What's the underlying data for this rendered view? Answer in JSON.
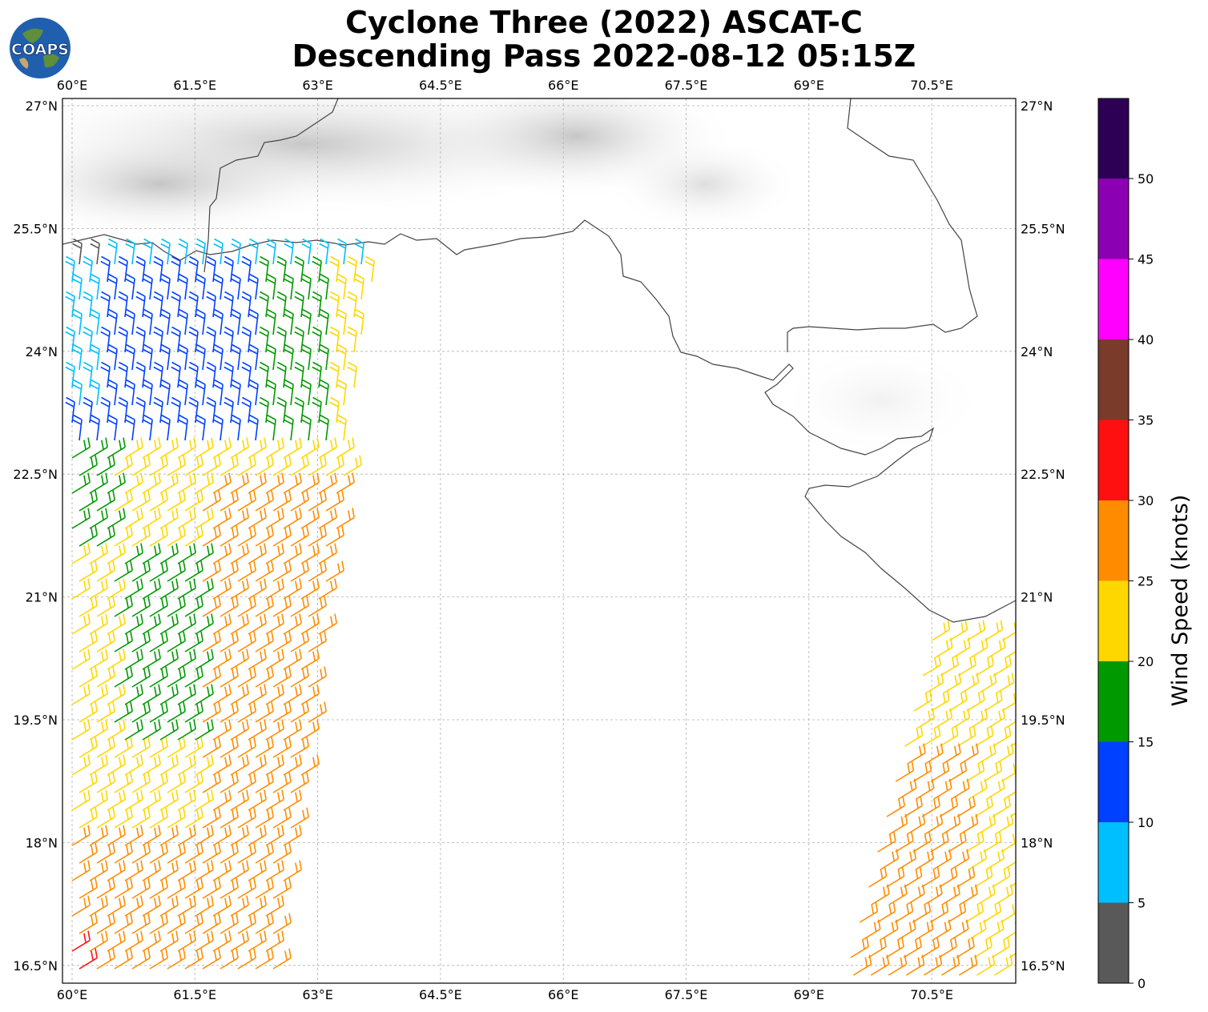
{
  "title_line1": "Cyclone Three (2022) ASCAT-C",
  "title_line2": "Descending Pass 2022-08-12 05:15Z",
  "logo_text": "COAPS",
  "lon_ticks": [
    "60°E",
    "61.5°E",
    "63°E",
    "64.5°E",
    "66°E",
    "67.5°E",
    "69°E",
    "70.5°E"
  ],
  "lat_ticks": [
    "27°N",
    "25.5°N",
    "24°N",
    "22.5°N",
    "21°N",
    "19.5°N",
    "18°N",
    "16.5°N"
  ],
  "colorbar": {
    "label": "Wind Speed (knots)",
    "ticks": [
      "0",
      "5",
      "10",
      "15",
      "20",
      "25",
      "30",
      "35",
      "40",
      "45",
      "50"
    ],
    "colors": [
      "#595959",
      "#00bfff",
      "#0040ff",
      "#009900",
      "#ffd700",
      "#ff8c00",
      "#ff1010",
      "#7a3b2a",
      "#ff00ff",
      "#8b00b2",
      "#2e0055"
    ]
  }
}
